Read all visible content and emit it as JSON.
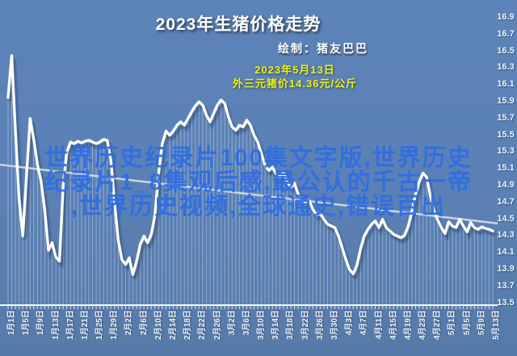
{
  "title": "2023年生猪价格走势",
  "credit": "绘制：猪友巴巴",
  "annotation": {
    "date": "2023年5月13日",
    "price": "外三元猪价14.36元/公斤"
  },
  "watermark": {
    "lines": [
      "世界历史纪录片100集文字版,世界历史",
      "纪录片1_8集观后感,最公认的千古一帝",
      ",世界历史视频,全球通史,错误百出"
    ]
  },
  "y_axis": {
    "labels": [
      "16.9",
      "16.7",
      "16.5",
      "16.3",
      "16.1",
      "15.9",
      "15.7",
      "15.5",
      "15.3",
      "15.1",
      "14.9",
      "14.7",
      "14.5",
      "14.3",
      "14.1",
      "13.9",
      "13.7",
      "13.5"
    ],
    "max": 16.9,
    "min": 13.5,
    "step": 0.2
  },
  "x_axis": {
    "tick_labels": [
      "1月1日",
      "1月5日",
      "1月9日",
      "1月13日",
      "1月17日",
      "1月21日",
      "1月25日",
      "1月29日",
      "2月2日",
      "2月6日",
      "2月10日",
      "2月14日",
      "2月18日",
      "2月22日",
      "2月26日",
      "3月2日",
      "3月6日",
      "3月10日",
      "3月14日",
      "3月18日",
      "3月22日",
      "3月26日",
      "3月30日",
      "4月3日",
      "4月7日",
      "4月11日",
      "4月15日",
      "4月19日",
      "4月23日",
      "4月27日",
      "5月1日",
      "5月5日",
      "5月9日",
      "5月13日"
    ],
    "tick_interval_days": 4
  },
  "colors": {
    "background": "#5a80b5",
    "price_line": "#ffffff",
    "price_line_shadow": "rgba(28,42,72,0.42)",
    "trend_line": "#d7dee9",
    "drop_lines": "rgba(255,255,255,0.35)",
    "axis": "#f5f8fc",
    "tick": "rgba(255,255,255,0.8)",
    "y_label": "#eef3fa",
    "x_label": "#f0f4fa",
    "title_text": "#ffffff",
    "annotation_yellow": "#ecf20d",
    "watermark_blue": "#2e6de4"
  },
  "chart_data": {
    "type": "line",
    "title": "2023年生猪价格走势",
    "unit": "元/公斤",
    "series_name": "外三元猪价",
    "x_description": "每日, 1月1日 至 5月13日",
    "x_tick_labels_every_4_days": true,
    "ylim": [
      13.5,
      16.9
    ],
    "grid": "daily vertical drop lines",
    "legend": "none",
    "values": [
      15.95,
      16.45,
      15.55,
      14.75,
      14.3,
      15.0,
      15.7,
      15.45,
      15.15,
      14.95,
      14.6,
      14.13,
      14.22,
      14.05,
      14.0,
      14.9,
      15.3,
      15.42,
      15.4,
      15.43,
      15.41,
      15.43,
      15.44,
      15.42,
      15.4,
      15.42,
      15.45,
      15.44,
      15.2,
      14.7,
      14.25,
      14.02,
      13.96,
      14.04,
      13.84,
      14.0,
      14.2,
      14.3,
      14.22,
      14.32,
      14.55,
      15.05,
      15.4,
      15.55,
      15.5,
      15.55,
      15.62,
      15.66,
      15.62,
      15.7,
      15.78,
      15.85,
      15.9,
      15.86,
      15.74,
      15.66,
      15.76,
      15.86,
      15.92,
      15.88,
      15.72,
      15.6,
      15.56,
      15.62,
      15.6,
      15.68,
      15.62,
      15.5,
      15.42,
      15.28,
      15.14,
      15.08,
      15.12,
      15.04,
      15.0,
      15.06,
      14.94,
      14.88,
      14.93,
      14.8,
      14.72,
      14.68,
      14.72,
      14.62,
      14.55,
      14.57,
      14.5,
      14.44,
      14.42,
      14.4,
      14.3,
      14.16,
      14.02,
      13.9,
      13.85,
      13.95,
      14.15,
      14.3,
      14.38,
      14.44,
      14.48,
      14.4,
      14.5,
      14.4,
      14.36,
      14.32,
      14.3,
      14.28,
      14.31,
      14.42,
      14.6,
      14.8,
      14.95,
      15.05,
      15.0,
      14.78,
      14.6,
      14.49,
      14.4,
      14.33,
      14.47,
      14.42,
      14.4,
      14.5,
      14.42,
      14.35,
      14.46,
      14.4,
      14.38,
      14.41,
      14.39,
      14.38,
      14.36
    ],
    "trend_line": {
      "start_value": 15.15,
      "end_value": 14.45
    },
    "last_point_label": "14.36"
  }
}
